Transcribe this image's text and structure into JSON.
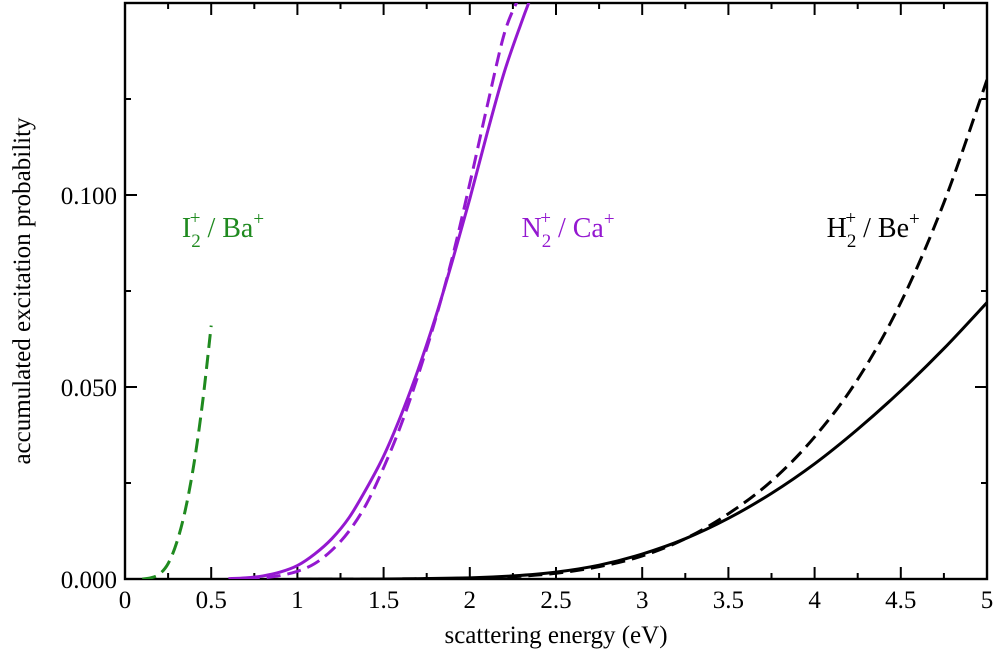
{
  "chart_data": {
    "type": "line",
    "title": "",
    "xlabel": "scattering energy (eV)",
    "ylabel": "accumulated excitation probability",
    "xlim": [
      0,
      5
    ],
    "ylim": [
      0,
      0.15
    ],
    "grid": false,
    "x_ticks": [
      {
        "value": 0,
        "label": "0"
      },
      {
        "value": 0.5,
        "label": "0.5"
      },
      {
        "value": 1,
        "label": "1"
      },
      {
        "value": 1.5,
        "label": "1.5"
      },
      {
        "value": 2,
        "label": "2"
      },
      {
        "value": 2.5,
        "label": "2.5"
      },
      {
        "value": 3,
        "label": "3"
      },
      {
        "value": 3.5,
        "label": "3.5"
      },
      {
        "value": 4,
        "label": "4"
      },
      {
        "value": 4.5,
        "label": "4.5"
      },
      {
        "value": 5,
        "label": "5"
      }
    ],
    "y_ticks": [
      {
        "value": 0,
        "label": "0.000"
      },
      {
        "value": 0.05,
        "label": "0.050"
      },
      {
        "value": 0.1,
        "label": "0.100"
      }
    ],
    "annotations": [
      {
        "id": "i2",
        "base": "I",
        "sub": "2",
        "sup": "+",
        "rest": " / Ba",
        "rest_sup": "+",
        "color": "#1f8a1f",
        "x": 0.33,
        "y": 0.089
      },
      {
        "id": "n2",
        "base": "N",
        "sub": "2",
        "sup": "+",
        "rest": " / Ca",
        "rest_sup": "+",
        "color": "#9418d0",
        "x": 2.3,
        "y": 0.089
      },
      {
        "id": "h2",
        "base": "H",
        "sub": "2",
        "sup": "+",
        "rest": " / Be",
        "rest_sup": "+",
        "color": "#000000",
        "x": 4.07,
        "y": 0.089
      }
    ],
    "series": [
      {
        "name": "I2+ / Ba+ dashed",
        "color": "#1f8a1f",
        "dash": true,
        "x": [
          0.1,
          0.15,
          0.2,
          0.25,
          0.3,
          0.35,
          0.4,
          0.45,
          0.5
        ],
        "y": [
          0.0,
          0.0003,
          0.0013,
          0.004,
          0.0095,
          0.018,
          0.03,
          0.046,
          0.066
        ]
      },
      {
        "name": "N2+ / Ca+ solid",
        "color": "#9418d0",
        "dash": false,
        "x": [
          0.6,
          0.7,
          0.8,
          0.9,
          1.0,
          1.1,
          1.2,
          1.3,
          1.4,
          1.5,
          1.6,
          1.7,
          1.8,
          1.9,
          2.0,
          2.1,
          2.2,
          2.3,
          2.35
        ],
        "y": [
          0.0001,
          0.0003,
          0.0008,
          0.0018,
          0.0035,
          0.0065,
          0.0105,
          0.016,
          0.0235,
          0.032,
          0.0425,
          0.0545,
          0.068,
          0.083,
          0.099,
          0.116,
          0.132,
          0.145,
          0.151
        ]
      },
      {
        "name": "N2+ / Ca+ dashed",
        "color": "#9418d0",
        "dash": true,
        "x": [
          0.7,
          0.8,
          0.9,
          1.0,
          1.1,
          1.2,
          1.3,
          1.4,
          1.5,
          1.6,
          1.7,
          1.8,
          1.9,
          2.0,
          2.1,
          2.2,
          2.28
        ],
        "y": [
          0.0001,
          0.0003,
          0.0009,
          0.002,
          0.004,
          0.0075,
          0.0125,
          0.0195,
          0.029,
          0.04,
          0.053,
          0.0675,
          0.084,
          0.103,
          0.123,
          0.142,
          0.151
        ]
      },
      {
        "name": "H2+ / Be+ solid",
        "color": "#000000",
        "dash": false,
        "x": [
          1.0,
          1.5,
          2.0,
          2.25,
          2.5,
          2.75,
          3.0,
          3.25,
          3.5,
          3.75,
          4.0,
          4.25,
          4.5,
          4.75,
          5.0
        ],
        "y": [
          0.0,
          0.0,
          0.0003,
          0.0008,
          0.0018,
          0.0036,
          0.0065,
          0.0105,
          0.0158,
          0.0223,
          0.03,
          0.039,
          0.049,
          0.06,
          0.072
        ]
      },
      {
        "name": "H2+ / Be+ dashed",
        "color": "#000000",
        "dash": true,
        "x": [
          1.0,
          1.5,
          2.0,
          2.25,
          2.5,
          2.75,
          3.0,
          3.25,
          3.5,
          3.75,
          4.0,
          4.25,
          4.5,
          4.75,
          5.0
        ],
        "y": [
          0.0,
          0.0,
          0.0002,
          0.0006,
          0.0015,
          0.0032,
          0.006,
          0.0105,
          0.017,
          0.0255,
          0.037,
          0.052,
          0.072,
          0.098,
          0.13
        ]
      }
    ]
  }
}
